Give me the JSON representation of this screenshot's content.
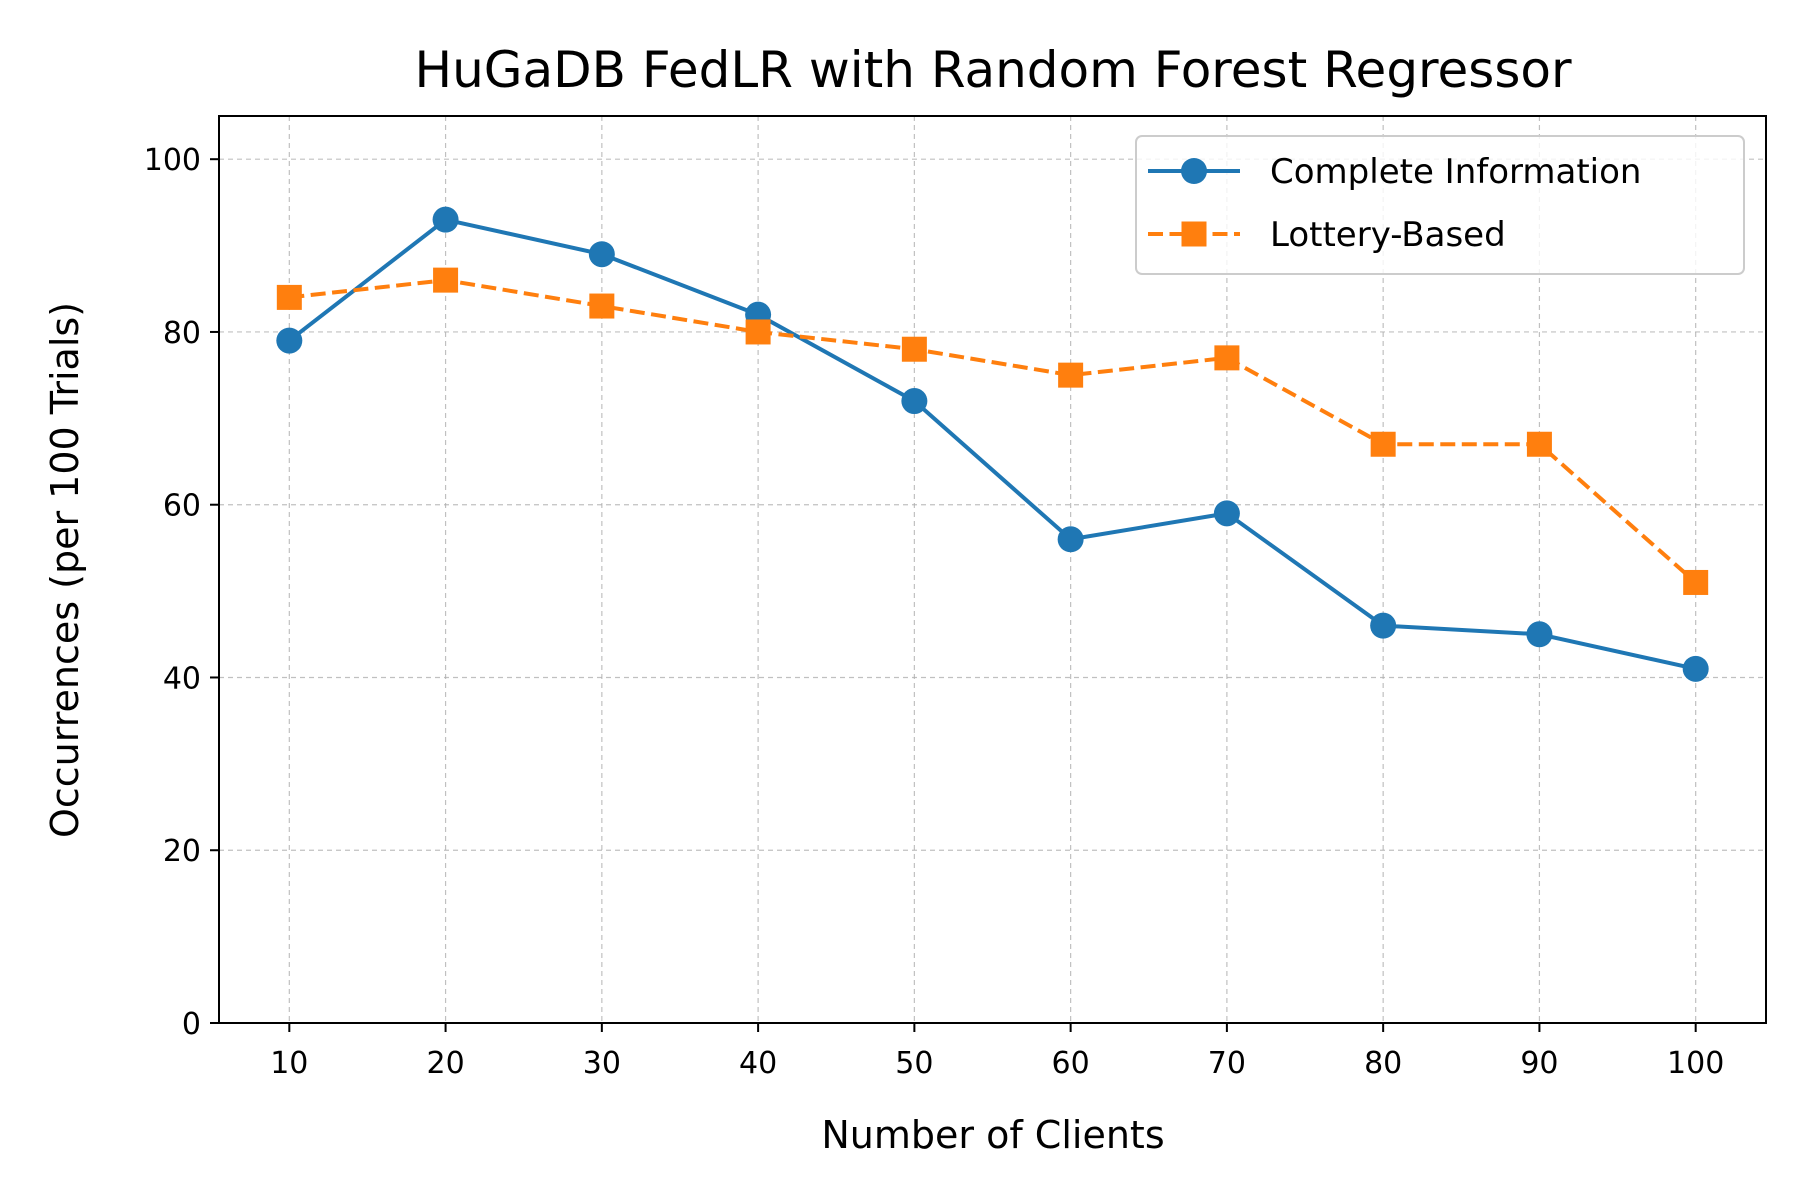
{
  "chart_data": {
    "type": "line",
    "title": "HuGaDB FedLR with Random Forest Regressor",
    "xlabel": "Number of Clients",
    "ylabel": "Occurrences (per 100 Trials)",
    "x": [
      10,
      20,
      30,
      40,
      50,
      60,
      70,
      80,
      90,
      100
    ],
    "xticks": [
      10,
      20,
      30,
      40,
      50,
      60,
      70,
      80,
      90,
      100
    ],
    "yticks": [
      0,
      20,
      40,
      60,
      80,
      100
    ],
    "xlim": [
      5.5,
      104.5
    ],
    "ylim": [
      0,
      105
    ],
    "grid": true,
    "legend_position": "top-right",
    "series": [
      {
        "name": "Complete Information",
        "values": [
          79,
          93,
          89,
          82,
          72,
          56,
          59,
          46,
          45,
          41
        ],
        "color": "#1f77b4",
        "marker": "circle",
        "linestyle": "solid"
      },
      {
        "name": "Lottery-Based",
        "values": [
          84,
          86,
          83,
          80,
          78,
          75,
          77,
          67,
          67,
          51
        ],
        "color": "#ff7f0e",
        "marker": "square",
        "linestyle": "dashed"
      }
    ]
  }
}
